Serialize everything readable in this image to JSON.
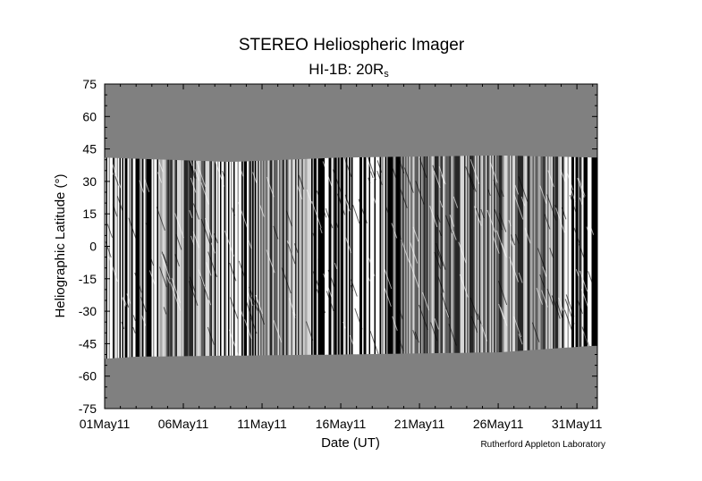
{
  "chart_data": {
    "type": "heatmap",
    "title": "STEREO Heliospheric Imager",
    "subtitle_main": "HI-1B: 20R",
    "subtitle_sub": "s",
    "xlabel": "Date (UT)",
    "ylabel": "Heliographic Latitude (°)",
    "x_tick_labels": [
      "01May11",
      "06May11",
      "11May11",
      "16May11",
      "21May11",
      "26May11",
      "31May11"
    ],
    "x_tick_days": [
      0,
      5,
      10,
      15,
      20,
      25,
      30
    ],
    "xlim_days": [
      0,
      31.3
    ],
    "y_ticks": [
      75,
      60,
      45,
      30,
      15,
      0,
      -15,
      -30,
      -45,
      -60,
      -75
    ],
    "ylim": [
      -75,
      75
    ],
    "data_band": {
      "north_edge_latitude": [
        [
          0,
          41
        ],
        [
          8,
          39
        ],
        [
          15,
          41
        ],
        [
          25,
          42
        ],
        [
          31.3,
          41
        ]
      ],
      "south_edge_latitude": [
        [
          0,
          -52
        ],
        [
          2,
          -51
        ],
        [
          15,
          -50
        ],
        [
          25,
          -49
        ],
        [
          31,
          -46
        ]
      ]
    },
    "colors": {
      "background_fill": "#808080",
      "stripe_dark": "#000000",
      "stripe_light": "#ffffff"
    },
    "credit": "Rutherford Appleton Laboratory"
  }
}
